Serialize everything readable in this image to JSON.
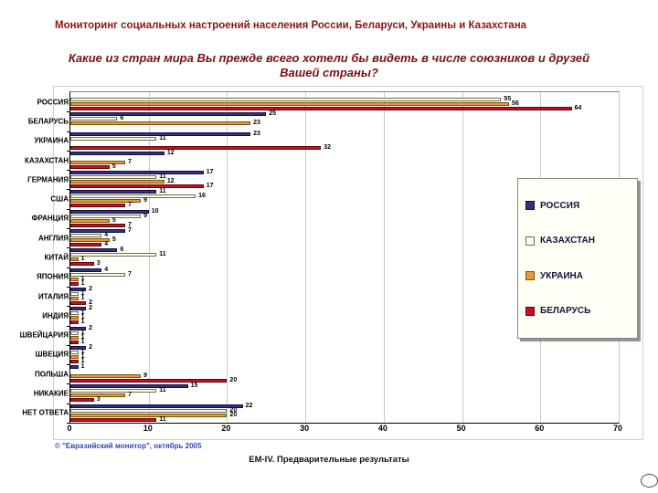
{
  "title": "Мониторинг социальных настроений населения России, Беларуси, Украины и Казахстана",
  "question": "Какие из стран мира Вы прежде всего хотели бы видеть в числе союзников и друзей Вашей страны?",
  "footer": {
    "source": "© \"Евразийский монитор\", октябрь 2005",
    "caption": "ЕМ-IV. Предварительные результаты"
  },
  "chart_data": {
    "type": "bar",
    "orientation": "horizontal",
    "title": "Какие из стран мира Вы прежде всего хотели бы видеть в числе союзников и друзей Вашей страны?",
    "categories": [
      "РОССИЯ",
      "БЕЛАРУСЬ",
      "УКРАИНА",
      "КАЗАХСТАН",
      "ГЕРМАНИЯ",
      "США",
      "ФРАНЦИЯ",
      "АНГЛИЯ",
      "КИТАЙ",
      "ЯПОНИЯ",
      "ИТАЛИЯ",
      "ИНДИЯ",
      "ШВЕЙЦАРИЯ",
      "ШВЕЦИЯ",
      "ПОЛЬША",
      "НИКАКИЕ",
      "НЕТ ОТВЕТА"
    ],
    "series": [
      {
        "name": "РОССИЯ",
        "color": "#32327f",
        "border": "#10103a",
        "values": [
          null,
          25,
          23,
          12,
          17,
          11,
          10,
          7,
          6,
          4,
          2,
          2,
          2,
          2,
          1,
          15,
          22
        ]
      },
      {
        "name": "КАЗАХСТАН",
        "color": "#fffee6",
        "border": "#6b6b50",
        "values": [
          55,
          6,
          11,
          null,
          11,
          16,
          9,
          4,
          11,
          7,
          1,
          1,
          1,
          1,
          null,
          11,
          20
        ]
      },
      {
        "name": "УКРАИНА",
        "color": "#e69a38",
        "border": "#7a5212",
        "values": [
          56,
          23,
          null,
          7,
          12,
          9,
          5,
          5,
          1,
          1,
          1,
          1,
          1,
          1,
          9,
          7,
          20
        ]
      },
      {
        "name": "БЕЛАРУСЬ",
        "color": "#c81022",
        "border": "#5e0508",
        "values": [
          64,
          null,
          32,
          5,
          17,
          7,
          7,
          4,
          3,
          1,
          2,
          1,
          1,
          1,
          20,
          3,
          11
        ]
      }
    ],
    "xlim": [
      0,
      70
    ],
    "xticks": [
      0,
      10,
      20,
      30,
      40,
      50,
      60,
      70
    ],
    "grid": "vertical",
    "legend_position": "right",
    "legend": [
      "РОССИЯ",
      "КАЗАХСТАН",
      "УКРАИНА",
      "БЕЛАРУСЬ"
    ]
  }
}
